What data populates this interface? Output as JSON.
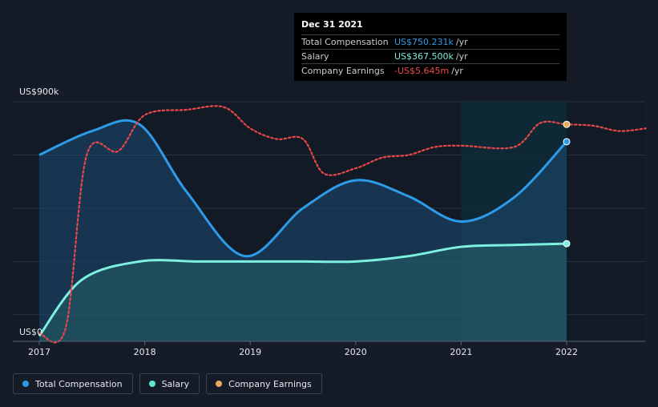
{
  "tooltip": {
    "date": "Dec 31 2021",
    "rows": [
      {
        "label": "Total Compensation",
        "value": "US$750.231k",
        "unit": "/yr",
        "color": "#2e9be8"
      },
      {
        "label": "Salary",
        "value": "US$367.500k",
        "unit": "/yr",
        "color": "#7df0df"
      },
      {
        "label": "Company Earnings",
        "value": "-US$5.645m",
        "unit": "/yr",
        "color": "#e84a4a"
      }
    ]
  },
  "legend": [
    {
      "label": "Total Compensation",
      "color": "#2e9be8"
    },
    {
      "label": "Salary",
      "color": "#5ee6d2"
    },
    {
      "label": "Company Earnings",
      "color": "#e8a95a"
    }
  ],
  "chart_data": {
    "type": "area",
    "y_top_label": "US$900k",
    "y_bottom_label": "US$0",
    "ylim": [
      0,
      900
    ],
    "xlim": [
      2017,
      2022.75
    ],
    "x_ticks": [
      "2017",
      "2018",
      "2019",
      "2020",
      "2021",
      "2022"
    ],
    "highlight_start": 2021,
    "series": [
      {
        "name": "Total Compensation",
        "color": "#2e9be8",
        "x": [
          2017,
          2017.5,
          2017.95,
          2018.4,
          2018.95,
          2019.5,
          2020.0,
          2020.5,
          2021.0,
          2021.5,
          2022.0
        ],
        "y": [
          700,
          790,
          815,
          560,
          320,
          500,
          605,
          545,
          450,
          540,
          750
        ]
      },
      {
        "name": "Salary",
        "color": "#7df0df",
        "x": [
          2017,
          2017.4,
          2017.95,
          2018.5,
          2019.0,
          2019.5,
          2020.0,
          2020.5,
          2021.0,
          2021.5,
          2022.0
        ],
        "y": [
          20,
          230,
          300,
          300,
          300,
          300,
          300,
          320,
          355,
          362,
          367
        ]
      },
      {
        "name": "Company Earnings",
        "color": "#e8484a",
        "style": "dotted",
        "x": [
          2017,
          2017.25,
          2017.45,
          2017.75,
          2018.0,
          2018.4,
          2018.75,
          2019.0,
          2019.25,
          2019.5,
          2019.7,
          2020.0,
          2020.25,
          2020.5,
          2020.75,
          2021.0,
          2021.5,
          2021.75,
          2022.0,
          2022.25,
          2022.5,
          2022.75
        ],
        "y": [
          30,
          50,
          700,
          715,
          850,
          870,
          880,
          800,
          760,
          760,
          630,
          650,
          690,
          700,
          730,
          735,
          730,
          820,
          815,
          810,
          790,
          800
        ]
      }
    ]
  }
}
